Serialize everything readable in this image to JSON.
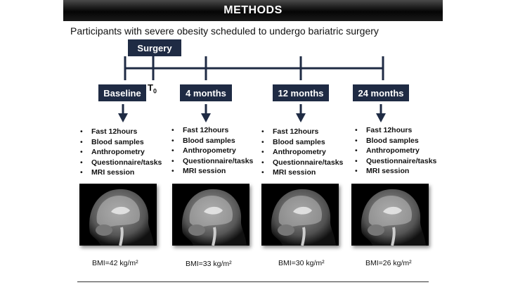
{
  "header": {
    "title": "METHODS"
  },
  "subtitle": "Participants with severe obesity scheduled to undergo bariatric surgery",
  "surgery_label": "Surgery",
  "t0_label": "T",
  "t0_sub": "0",
  "timepoints": [
    {
      "label": "Baseline",
      "items": [
        "Fast 12hours",
        "Blood samples",
        "Anthropometry",
        "Questionnaire/tasks",
        "MRI session"
      ],
      "bmi": "BMI=42 kg/m²"
    },
    {
      "label": "4 months",
      "items": [
        "Fast 12hours",
        "Blood samples",
        "Anthropometry",
        "Questionnaire/tasks",
        "MRI session"
      ],
      "bmi": "BMI=33 kg/m²"
    },
    {
      "label": "12 months",
      "items": [
        "Fast 12hours",
        "Blood samples",
        "Anthropometry",
        "Questionnaire/tasks",
        "MRI session"
      ],
      "bmi": "BMI=30 kg/m²"
    },
    {
      "label": "24 months",
      "items": [
        "Fast 12hours",
        "Blood samples",
        "Anthropometry",
        "Questionnaire/tasks",
        "MRI session"
      ],
      "bmi": "BMI=26 kg/m²"
    }
  ],
  "bullet": "•",
  "colors": {
    "box": "#1f2b44",
    "header": "#0a0a0a"
  }
}
